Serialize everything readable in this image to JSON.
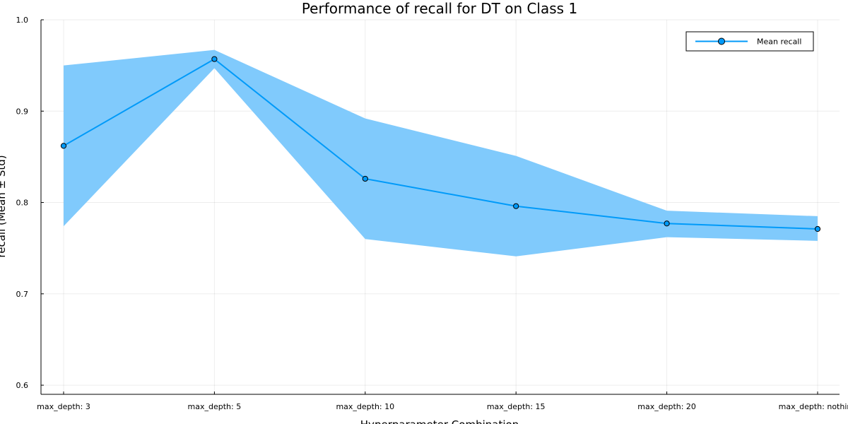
{
  "chart_data": {
    "type": "line",
    "title": "Performance of recall for DT on Class 1",
    "xlabel": "Hyperparameter Combination",
    "ylabel": "recall (Mean ± Std)",
    "categories": [
      "max_depth: 3",
      "max_depth: 5",
      "max_depth: 10",
      "max_depth: 15",
      "max_depth: 20",
      "max_depth: nothing"
    ],
    "series": [
      {
        "name": "Mean recall",
        "values": [
          0.862,
          0.957,
          0.826,
          0.796,
          0.777,
          0.771
        ],
        "lower": [
          0.774,
          0.947,
          0.76,
          0.741,
          0.762,
          0.758
        ],
        "upper": [
          0.95,
          0.967,
          0.892,
          0.851,
          0.791,
          0.785
        ]
      }
    ],
    "ylim": [
      0.59,
      1.0
    ],
    "yticks": [
      0.6,
      0.7,
      0.8,
      0.9,
      1.0
    ],
    "ytick_labels": [
      "0.6",
      "0.7",
      "0.8",
      "0.9",
      "1.0"
    ],
    "grid": true,
    "legend_position": "top-right",
    "colors": {
      "line": "#009af9",
      "band": "#80cafc"
    }
  }
}
